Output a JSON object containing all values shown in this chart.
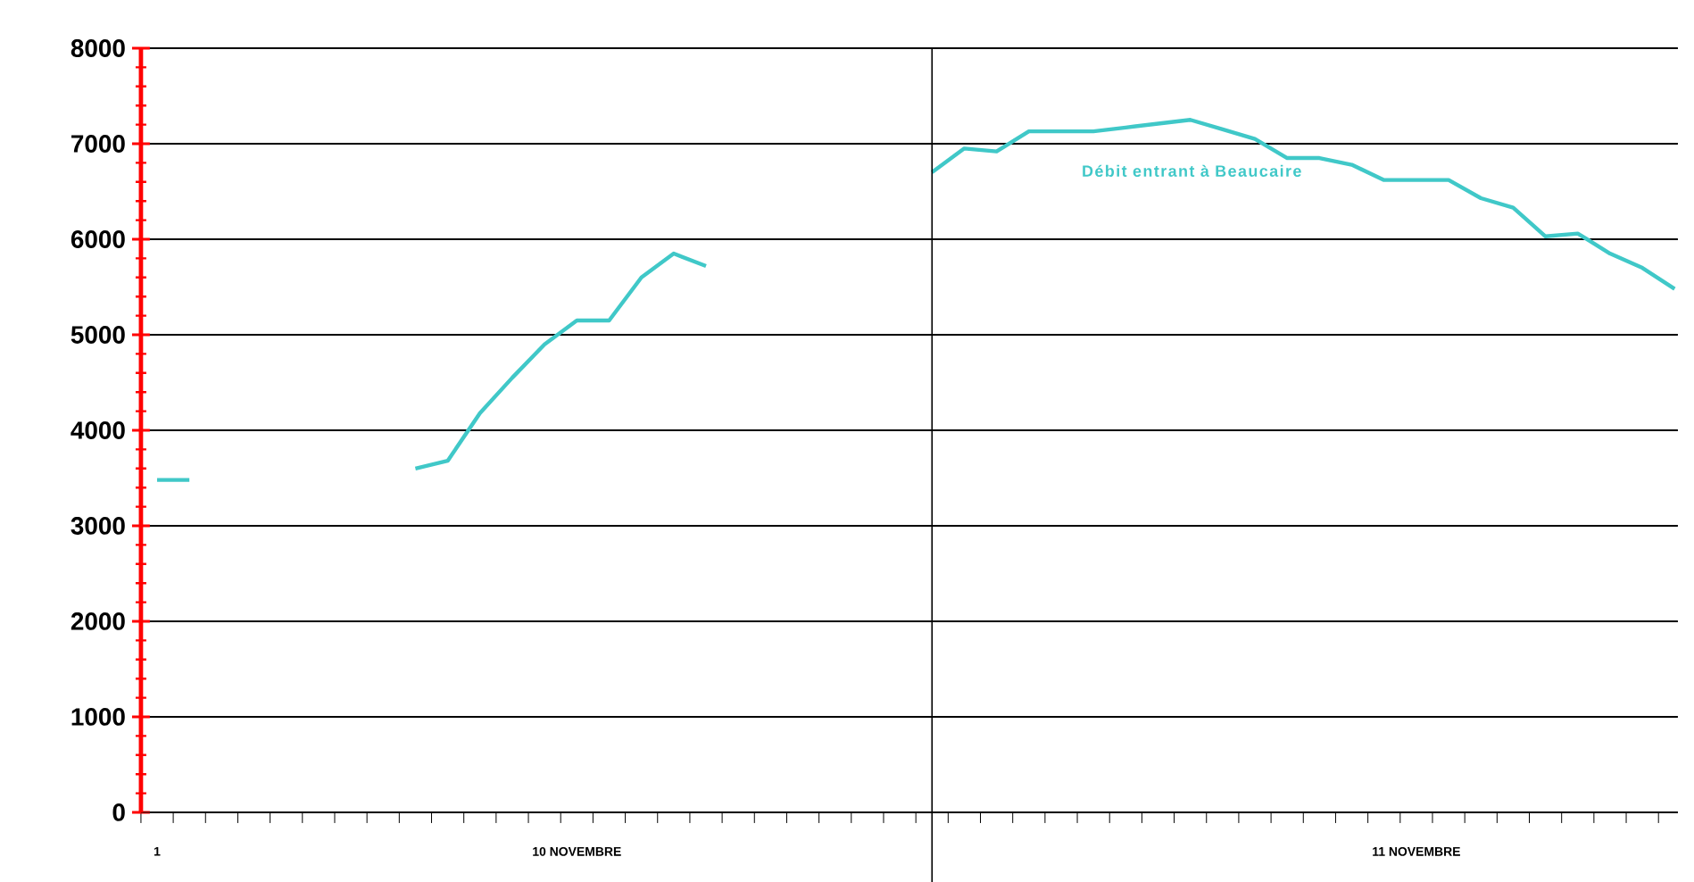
{
  "chart_data": {
    "type": "line",
    "categories": [
      "1",
      null,
      null,
      null,
      null,
      null,
      null,
      null,
      null,
      null,
      null,
      null,
      null,
      "10 NOVEMBRE",
      null,
      null,
      null,
      null,
      null,
      null,
      null,
      null,
      null,
      null,
      null,
      null,
      null,
      null,
      null,
      null,
      null,
      null,
      null,
      null,
      null,
      null,
      null,
      null,
      null,
      "11 NOVEMBRE",
      null,
      null,
      null,
      null,
      null,
      null,
      null,
      null
    ],
    "series": [
      {
        "name": "Débit entrant à Beaucaire",
        "color": "#40c8c8",
        "values": [
          3480,
          3480,
          null,
          null,
          null,
          null,
          null,
          null,
          3600,
          3680,
          4180,
          4550,
          4900,
          5150,
          5150,
          5600,
          5850,
          5720,
          null,
          null,
          null,
          null,
          null,
          null,
          6700,
          6950,
          6920,
          7130,
          7130,
          7130,
          7170,
          7210,
          7250,
          7150,
          7050,
          6850,
          6850,
          6780,
          6620,
          6620,
          6620,
          6430,
          6330,
          6030,
          6060,
          5850,
          5700,
          5480
        ]
      }
    ],
    "ylim": [
      0,
      8000
    ],
    "yticks": [
      0,
      1000,
      2000,
      3000,
      4000,
      5000,
      6000,
      7000,
      8000
    ],
    "grid": "y",
    "marker": "none",
    "line_style": "solid"
  }
}
